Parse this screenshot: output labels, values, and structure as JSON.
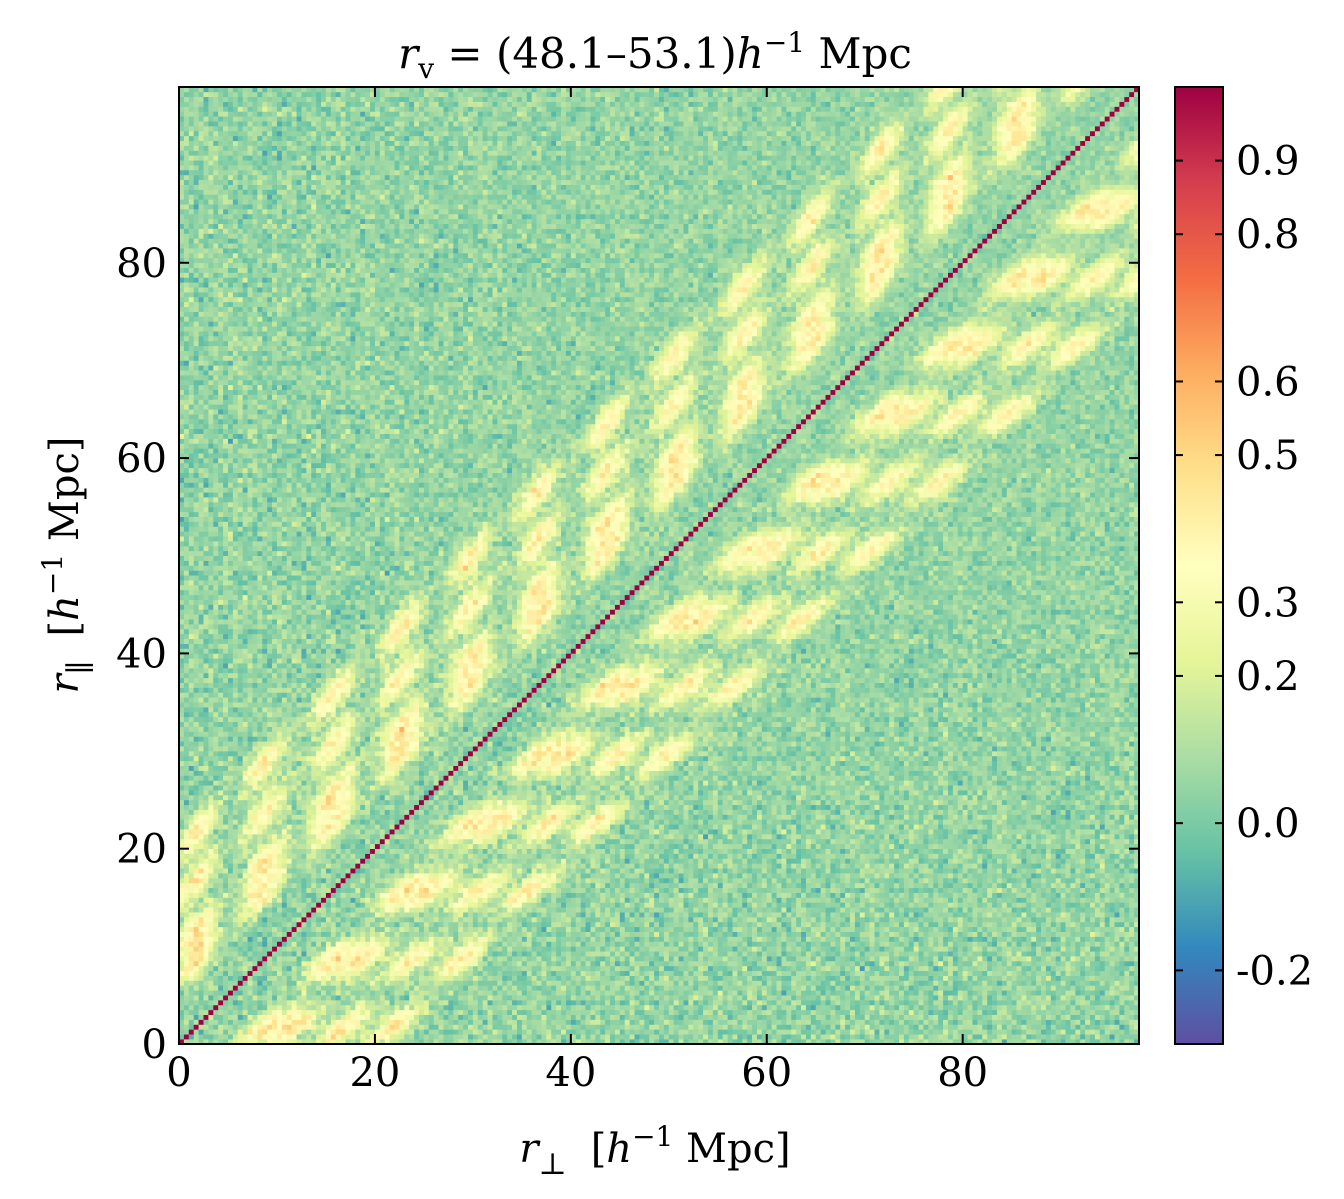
{
  "chart_data": {
    "type": "heatmap",
    "title": {
      "var": "r",
      "sub": "v",
      "eq": " = (48.1–53.1)",
      "h": "h",
      "exp": "−1",
      "unit": " Mpc"
    },
    "xlabel": {
      "var": "r",
      "sub": "⊥",
      "open": "[",
      "h": "h",
      "exp": "−1",
      "unit": " Mpc]"
    },
    "ylabel": {
      "var": "r",
      "sub": "∥",
      "open": "[",
      "h": "h",
      "exp": "−1",
      "unit": " Mpc]"
    },
    "xlim": [
      0,
      98
    ],
    "ylim": [
      0,
      98
    ],
    "grid_bins": 196,
    "xticks": [
      0,
      20,
      40,
      60,
      80
    ],
    "yticks": [
      0,
      20,
      40,
      60,
      80
    ],
    "colorbar": {
      "range": [
        -0.3,
        1.0
      ],
      "ticks": [
        0.9,
        0.8,
        0.6,
        0.5,
        0.3,
        0.2,
        0.0,
        -0.2
      ],
      "tick_labels": [
        "0.9",
        "0.8",
        "0.6",
        "0.5",
        "0.3",
        "0.2",
        "0.0",
        "-0.2"
      ],
      "colormap": "Spectral_r",
      "colors": [
        "#5e4fa2",
        "#3288bd",
        "#66c2a5",
        "#abdda4",
        "#e6f598",
        "#ffffbf",
        "#fee08b",
        "#fdae61",
        "#f46d43",
        "#d53e4f",
        "#9e0142"
      ]
    },
    "pattern": {
      "description": "correlation matrix; diagonal = 1, off-diagonal bands at separations",
      "diagonal_value": 1.0,
      "band_offsets": [
        -20,
        -15,
        -10,
        -7,
        7,
        10,
        15,
        20
      ],
      "band_value": 0.35,
      "background_mean": 0.05,
      "noise_sigma": 0.12
    }
  }
}
